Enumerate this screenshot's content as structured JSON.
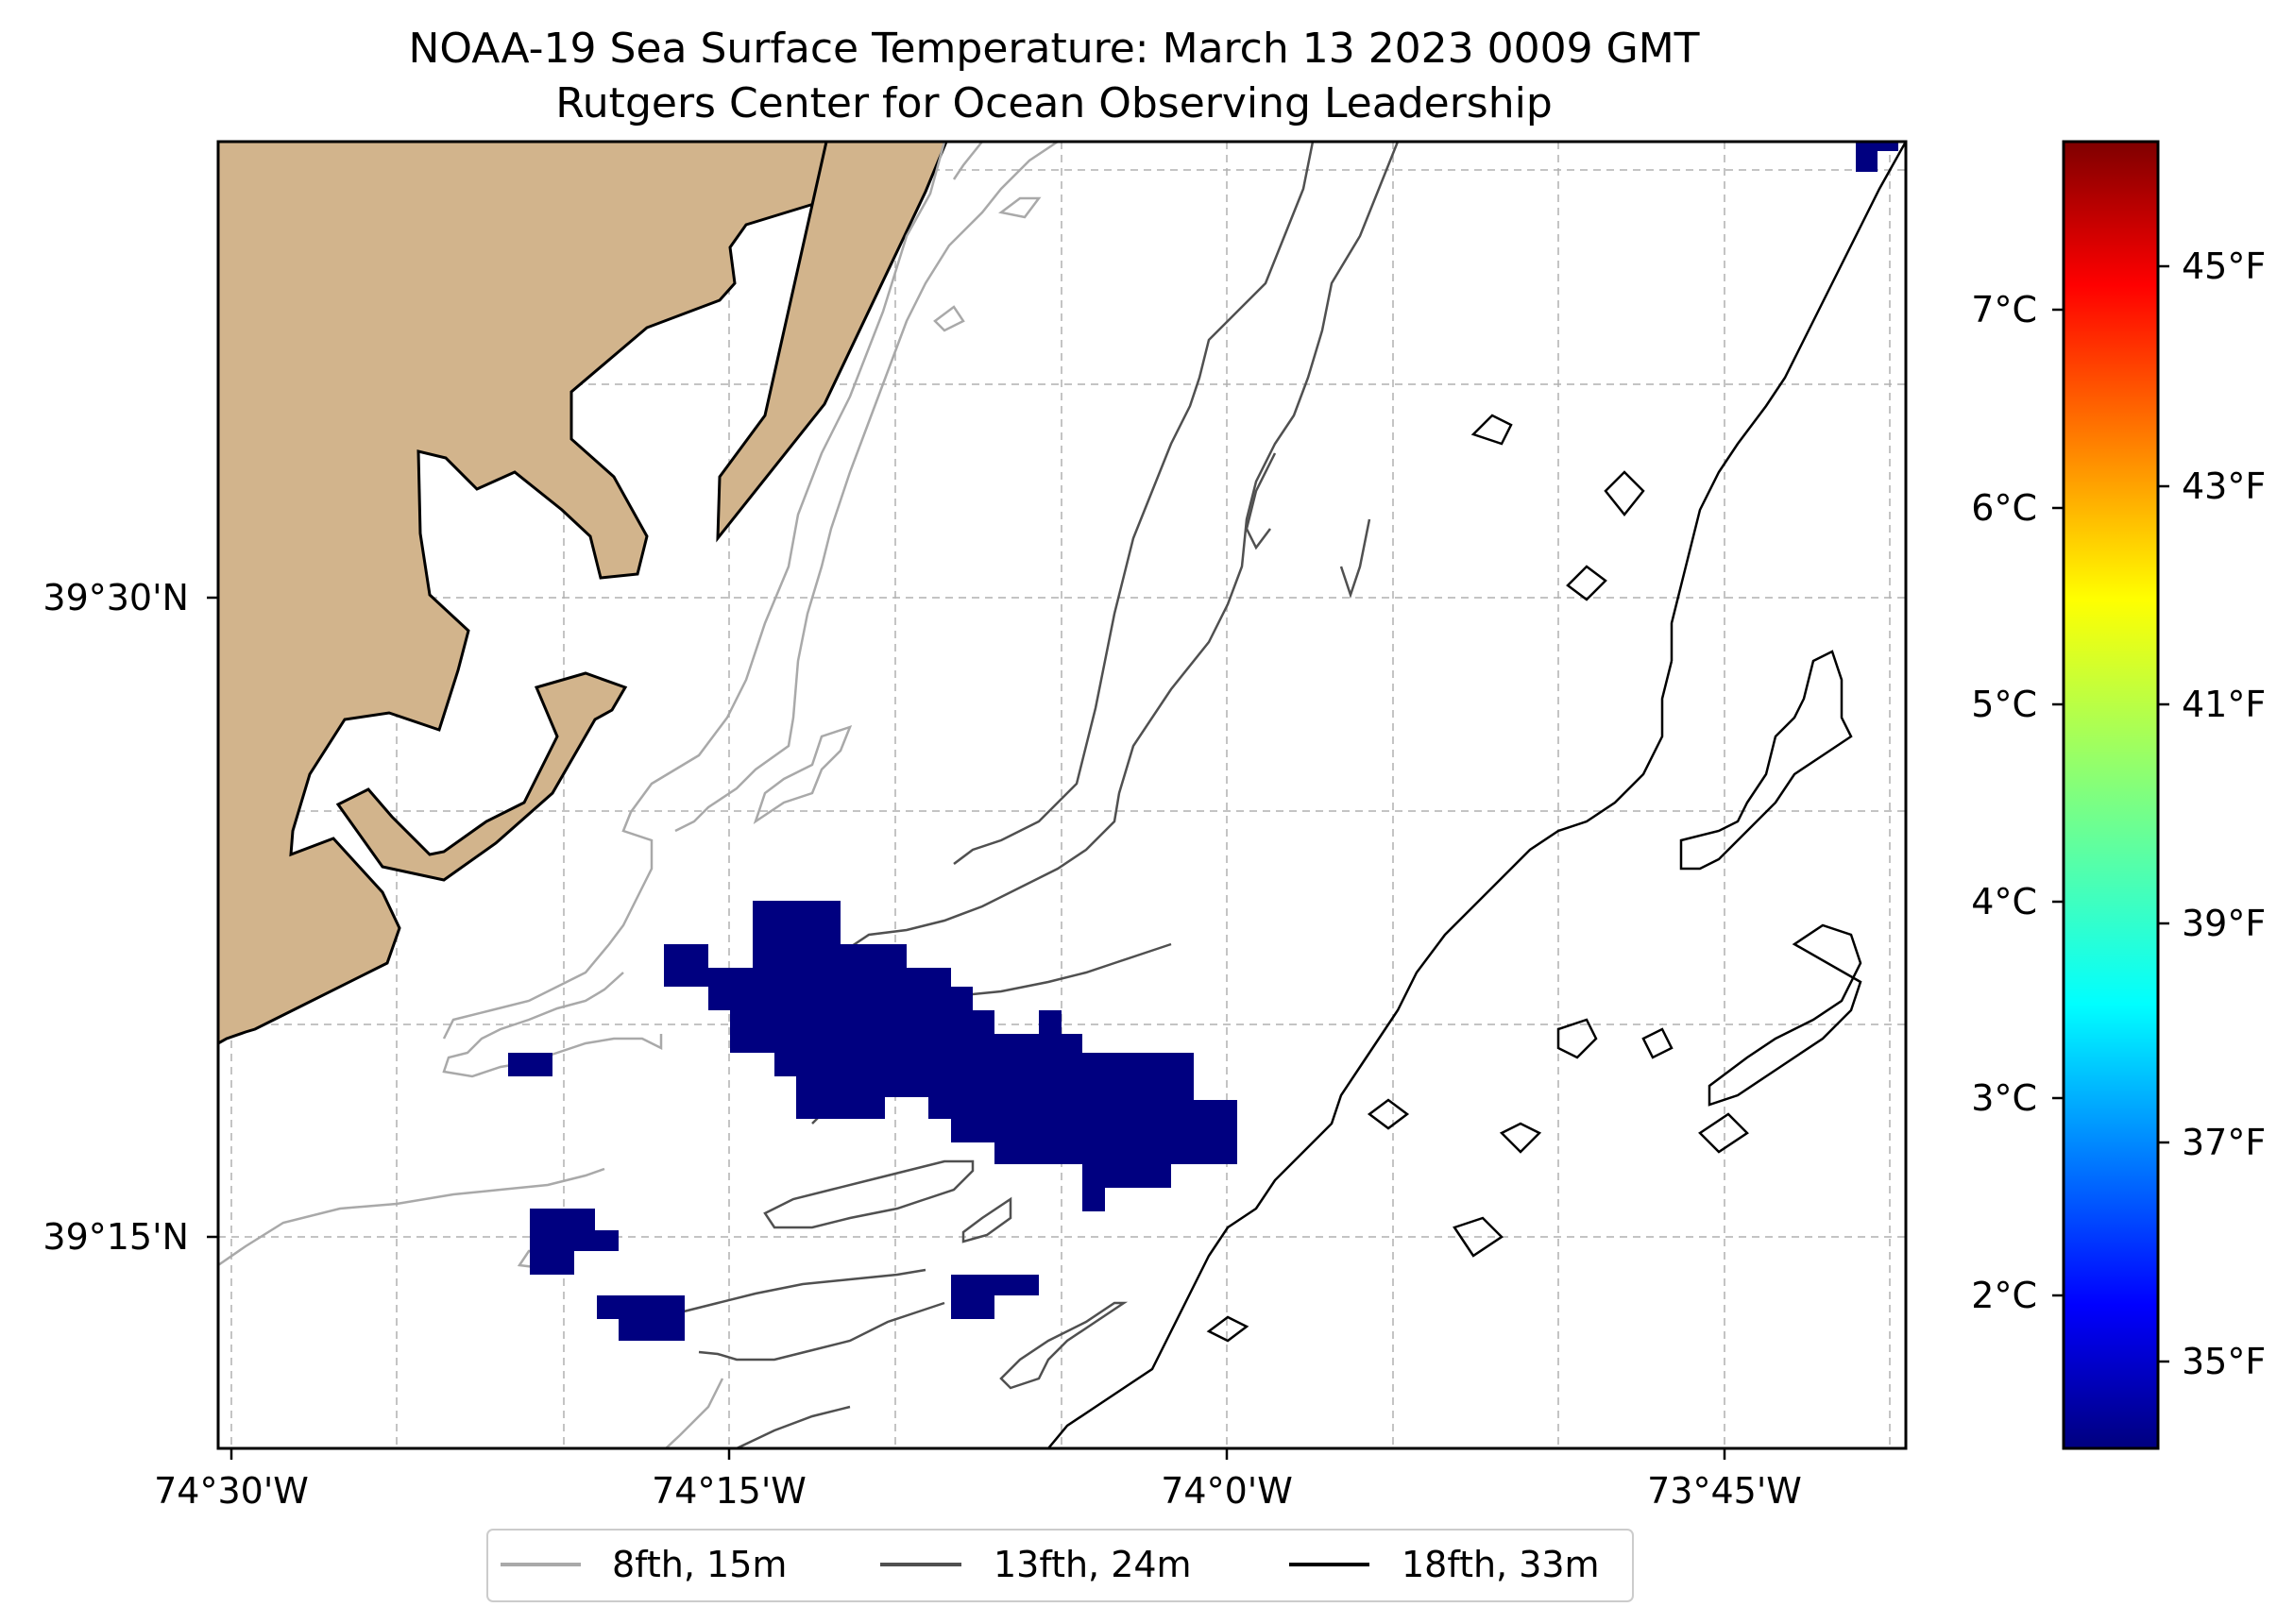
{
  "title": "NOAA-19 Sea Surface Temperature: March 13 2023 0009 GMT",
  "subtitle": "Rutgers Center for Ocean Observing Leadership",
  "map": {
    "lon_ticks": [
      "74°30'W",
      "74°15'W",
      "74°0'W",
      "73°45'W"
    ],
    "lat_ticks": [
      "39°30'N",
      "39°15'N"
    ],
    "land_color": "#d2b48c",
    "sst_color": "#000080"
  },
  "colorbar": {
    "celsius_ticks": [
      "7°C",
      "6°C",
      "5°C",
      "4°C",
      "3°C",
      "2°C"
    ],
    "fahrenheit_ticks": [
      "45°F",
      "43°F",
      "41°F",
      "39°F",
      "37°F",
      "35°F"
    ],
    "colormap": "jet"
  },
  "legend": {
    "items": [
      {
        "label": "8fth, 15m",
        "color": "#a9a9a9"
      },
      {
        "label": "13fth, 24m",
        "color": "#505050"
      },
      {
        "label": "18fth, 33m",
        "color": "#000000"
      }
    ]
  }
}
